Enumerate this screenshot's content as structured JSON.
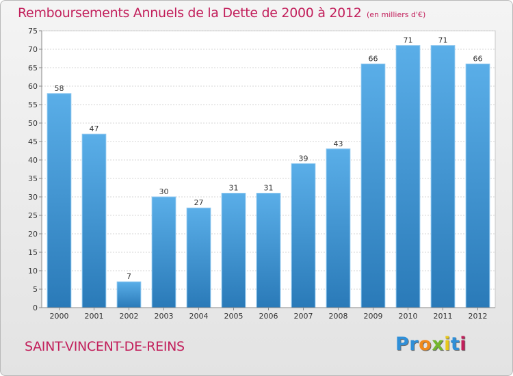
{
  "header": {
    "title": "Remboursements Annuels de la Dette de 2000 à 2012",
    "unit": "(en milliers d'€)"
  },
  "footer": {
    "town": "SAINT-VINCENT-DE-REINS",
    "logo_letters": [
      {
        "char": "P",
        "color": "#2f8fd8"
      },
      {
        "char": "r",
        "color": "#2f8fd8"
      },
      {
        "char": "o",
        "color": "#f08a1c"
      },
      {
        "char": "x",
        "color": "#74b62e"
      },
      {
        "char": "i",
        "color": "#e8c81a"
      },
      {
        "char": "t",
        "color": "#2f8fd8"
      },
      {
        "char": "i",
        "color": "#c21f5b"
      }
    ]
  },
  "chart_data": {
    "type": "bar",
    "title": "Remboursements Annuels de la Dette de 2000 à 2012",
    "categories": [
      "2000",
      "2001",
      "2002",
      "2003",
      "2004",
      "2005",
      "2006",
      "2007",
      "2008",
      "2009",
      "2010",
      "2011",
      "2012"
    ],
    "values": [
      58,
      47,
      7,
      30,
      27,
      31,
      31,
      39,
      43,
      66,
      71,
      71,
      66
    ],
    "ylim": [
      0,
      75
    ],
    "yticks": [
      0,
      5,
      10,
      15,
      20,
      25,
      30,
      35,
      40,
      45,
      50,
      55,
      60,
      65,
      70,
      75
    ],
    "grid": true,
    "bar_color_top": "#5aaee8",
    "bar_color_bottom": "#2a7ab8",
    "title_color": "#c21f5b"
  }
}
